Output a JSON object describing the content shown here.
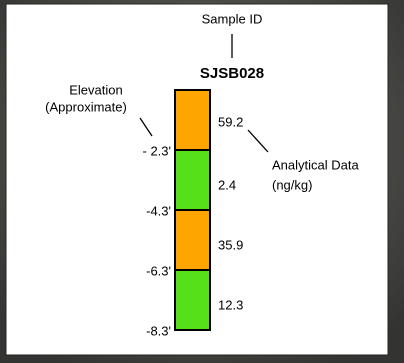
{
  "header": {
    "sample_label": "Sample ID",
    "sample_id": "SJSB028"
  },
  "elevation_label": {
    "lines": [
      "Elevation",
      "(Approximate)"
    ]
  },
  "data_label": {
    "lines": [
      "Analytical Data",
      "(ng/kg)"
    ]
  },
  "depths": [
    "- 2.3'",
    "-4.3'",
    "-6.3'",
    "-8.3'"
  ],
  "intervals": [
    {
      "value": "59.2",
      "color": "#ffa500"
    },
    {
      "value": "2.4",
      "color": "#55e01a"
    },
    {
      "value": "35.9",
      "color": "#ffa500"
    },
    {
      "value": "12.3",
      "color": "#55e01a"
    }
  ]
}
